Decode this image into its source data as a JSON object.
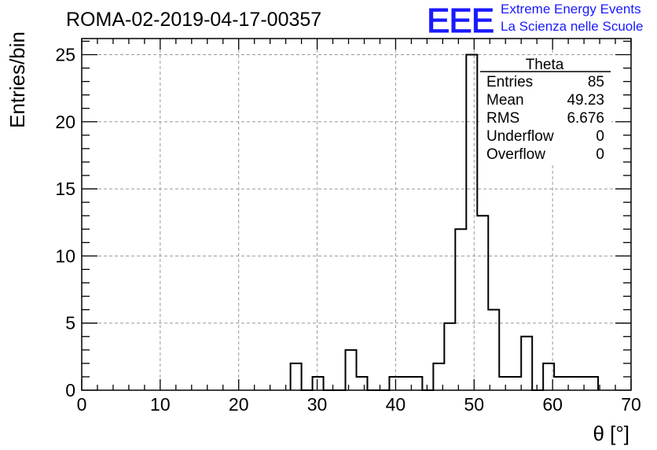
{
  "chart_data": {
    "type": "bar",
    "title": "ROMA-02-2019-04-17-00357",
    "xlabel": "θ [°]",
    "ylabel": "Entries/bin",
    "xlim": [
      0,
      70
    ],
    "ylim": [
      0,
      26.2
    ],
    "bin_width": 1.4,
    "x_ticks": [
      0,
      10,
      20,
      30,
      40,
      50,
      60,
      70
    ],
    "y_ticks": [
      0,
      5,
      10,
      15,
      20,
      25
    ],
    "grid": true,
    "bins": [
      {
        "x0": 26.6,
        "value": 2
      },
      {
        "x0": 28.0,
        "value": 0
      },
      {
        "x0": 29.4,
        "value": 1
      },
      {
        "x0": 30.8,
        "value": 0
      },
      {
        "x0": 32.2,
        "value": 0
      },
      {
        "x0": 33.6,
        "value": 3
      },
      {
        "x0": 35.0,
        "value": 1
      },
      {
        "x0": 36.4,
        "value": 0
      },
      {
        "x0": 37.8,
        "value": 0
      },
      {
        "x0": 39.2,
        "value": 1
      },
      {
        "x0": 40.6,
        "value": 1
      },
      {
        "x0": 42.0,
        "value": 1
      },
      {
        "x0": 43.4,
        "value": 0
      },
      {
        "x0": 44.8,
        "value": 2
      },
      {
        "x0": 46.2,
        "value": 5
      },
      {
        "x0": 47.6,
        "value": 12
      },
      {
        "x0": 49.0,
        "value": 25
      },
      {
        "x0": 50.4,
        "value": 13
      },
      {
        "x0": 51.8,
        "value": 6
      },
      {
        "x0": 53.2,
        "value": 1
      },
      {
        "x0": 54.6,
        "value": 1
      },
      {
        "x0": 56.0,
        "value": 4
      },
      {
        "x0": 57.4,
        "value": 0
      },
      {
        "x0": 58.8,
        "value": 2
      },
      {
        "x0": 60.2,
        "value": 1
      },
      {
        "x0": 61.6,
        "value": 1
      },
      {
        "x0": 63.0,
        "value": 1
      },
      {
        "x0": 64.4,
        "value": 1
      }
    ],
    "stats_box": {
      "title": "Theta",
      "rows": [
        {
          "label": "Entries",
          "value": "85"
        },
        {
          "label": "Mean",
          "value": "49.23"
        },
        {
          "label": "RMS",
          "value": "6.676"
        },
        {
          "label": "Underflow",
          "value": "0"
        },
        {
          "label": "Overflow",
          "value": "0"
        }
      ]
    },
    "line_color": "#000000",
    "grid_color": "#999999"
  },
  "logo": {
    "mark": "EEE",
    "line1": "Extreme Energy Events",
    "line2": "La Scienza nelle Scuole",
    "color": "#1a1aff"
  }
}
